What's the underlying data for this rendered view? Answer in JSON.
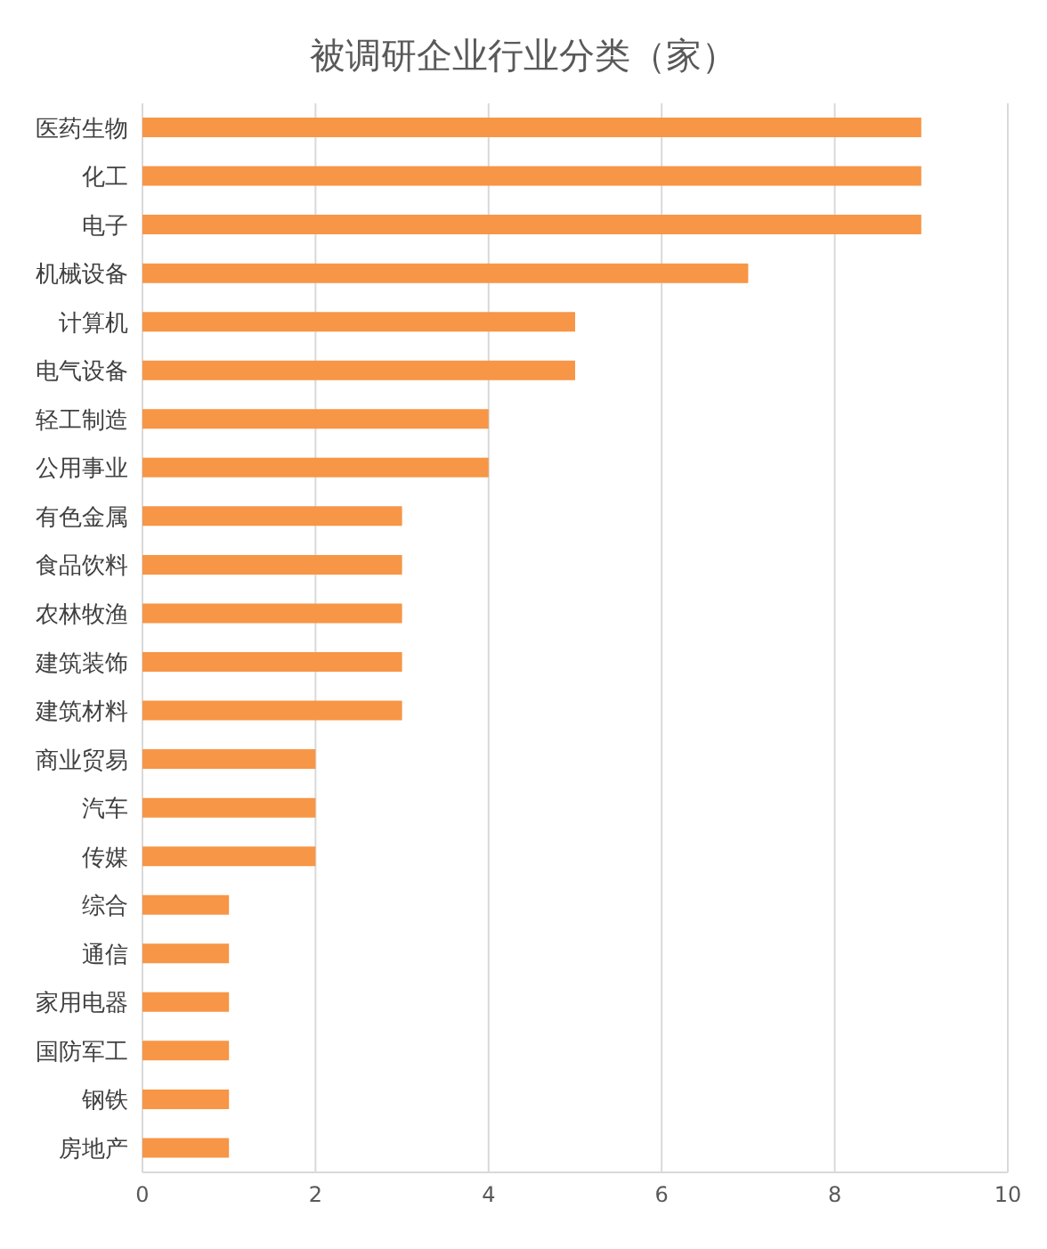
{
  "chart_data": {
    "type": "bar",
    "orientation": "horizontal",
    "title": "被调研企业行业分类（家）",
    "categories": [
      "医药生物",
      "化工",
      "电子",
      "机械设备",
      "计算机",
      "电气设备",
      "轻工制造",
      "公用事业",
      "有色金属",
      "食品饮料",
      "农林牧渔",
      "建筑装饰",
      "建筑材料",
      "商业贸易",
      "汽车",
      "传媒",
      "综合",
      "通信",
      "家用电器",
      "国防军工",
      "钢铁",
      "房地产"
    ],
    "values": [
      9,
      9,
      9,
      7,
      5,
      5,
      4,
      4,
      3,
      3,
      3,
      3,
      3,
      2,
      2,
      2,
      1,
      1,
      1,
      1,
      1,
      1
    ],
    "color": "#f79646",
    "xlim": [
      0,
      10
    ],
    "xticks": [
      0,
      2,
      4,
      6,
      8,
      10
    ],
    "grid": "x"
  }
}
